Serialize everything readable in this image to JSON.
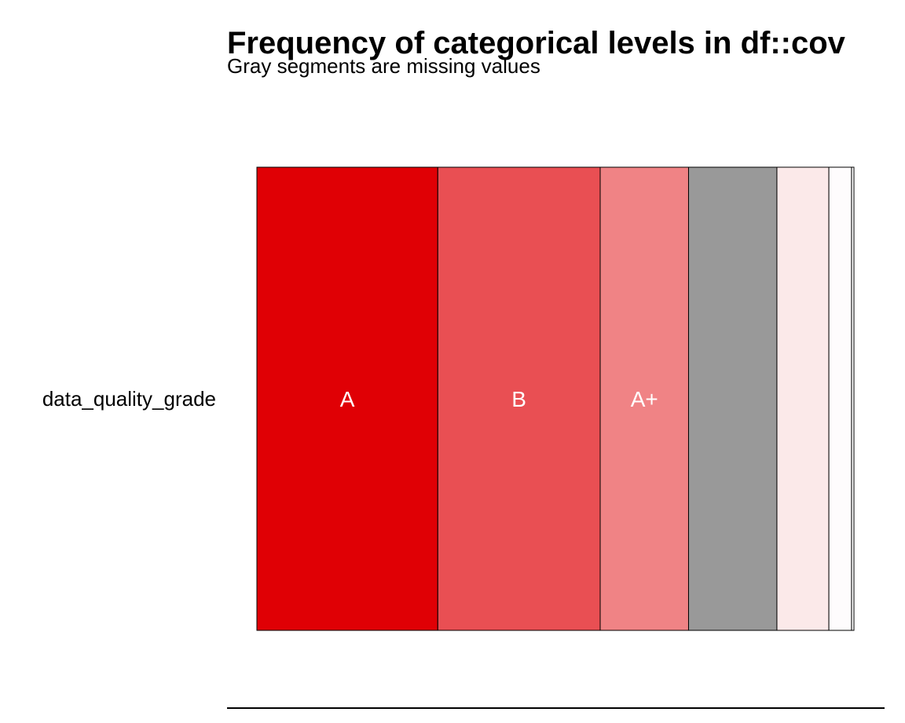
{
  "chart_data": {
    "type": "bar",
    "orientation": "horizontal",
    "stacked": "proportional",
    "title": "Frequency of categorical levels in df::cov",
    "subtitle": "Gray segments are missing values",
    "categories": [
      "data_quality_grade"
    ],
    "xlim": [
      0,
      1
    ],
    "grid": false,
    "legend": "none",
    "series": [
      {
        "name": "A",
        "values": [
          0.303
        ],
        "label": "A",
        "color": "#e00005"
      },
      {
        "name": "B",
        "values": [
          0.272
        ],
        "label": "B",
        "color": "#e94f53"
      },
      {
        "name": "A+",
        "values": [
          0.148
        ],
        "label": "A+",
        "color": "#f08385"
      },
      {
        "values": [
          0.148
        ],
        "label": "",
        "color": "#999999",
        "missing": true
      },
      {
        "values": [
          0.087
        ],
        "label": "",
        "color": "#fbe9e9"
      },
      {
        "values": [
          0.038
        ],
        "label": "",
        "color": "#fefcfd"
      },
      {
        "values": [
          0.004
        ],
        "label": "",
        "color": "#ffffff"
      }
    ]
  }
}
